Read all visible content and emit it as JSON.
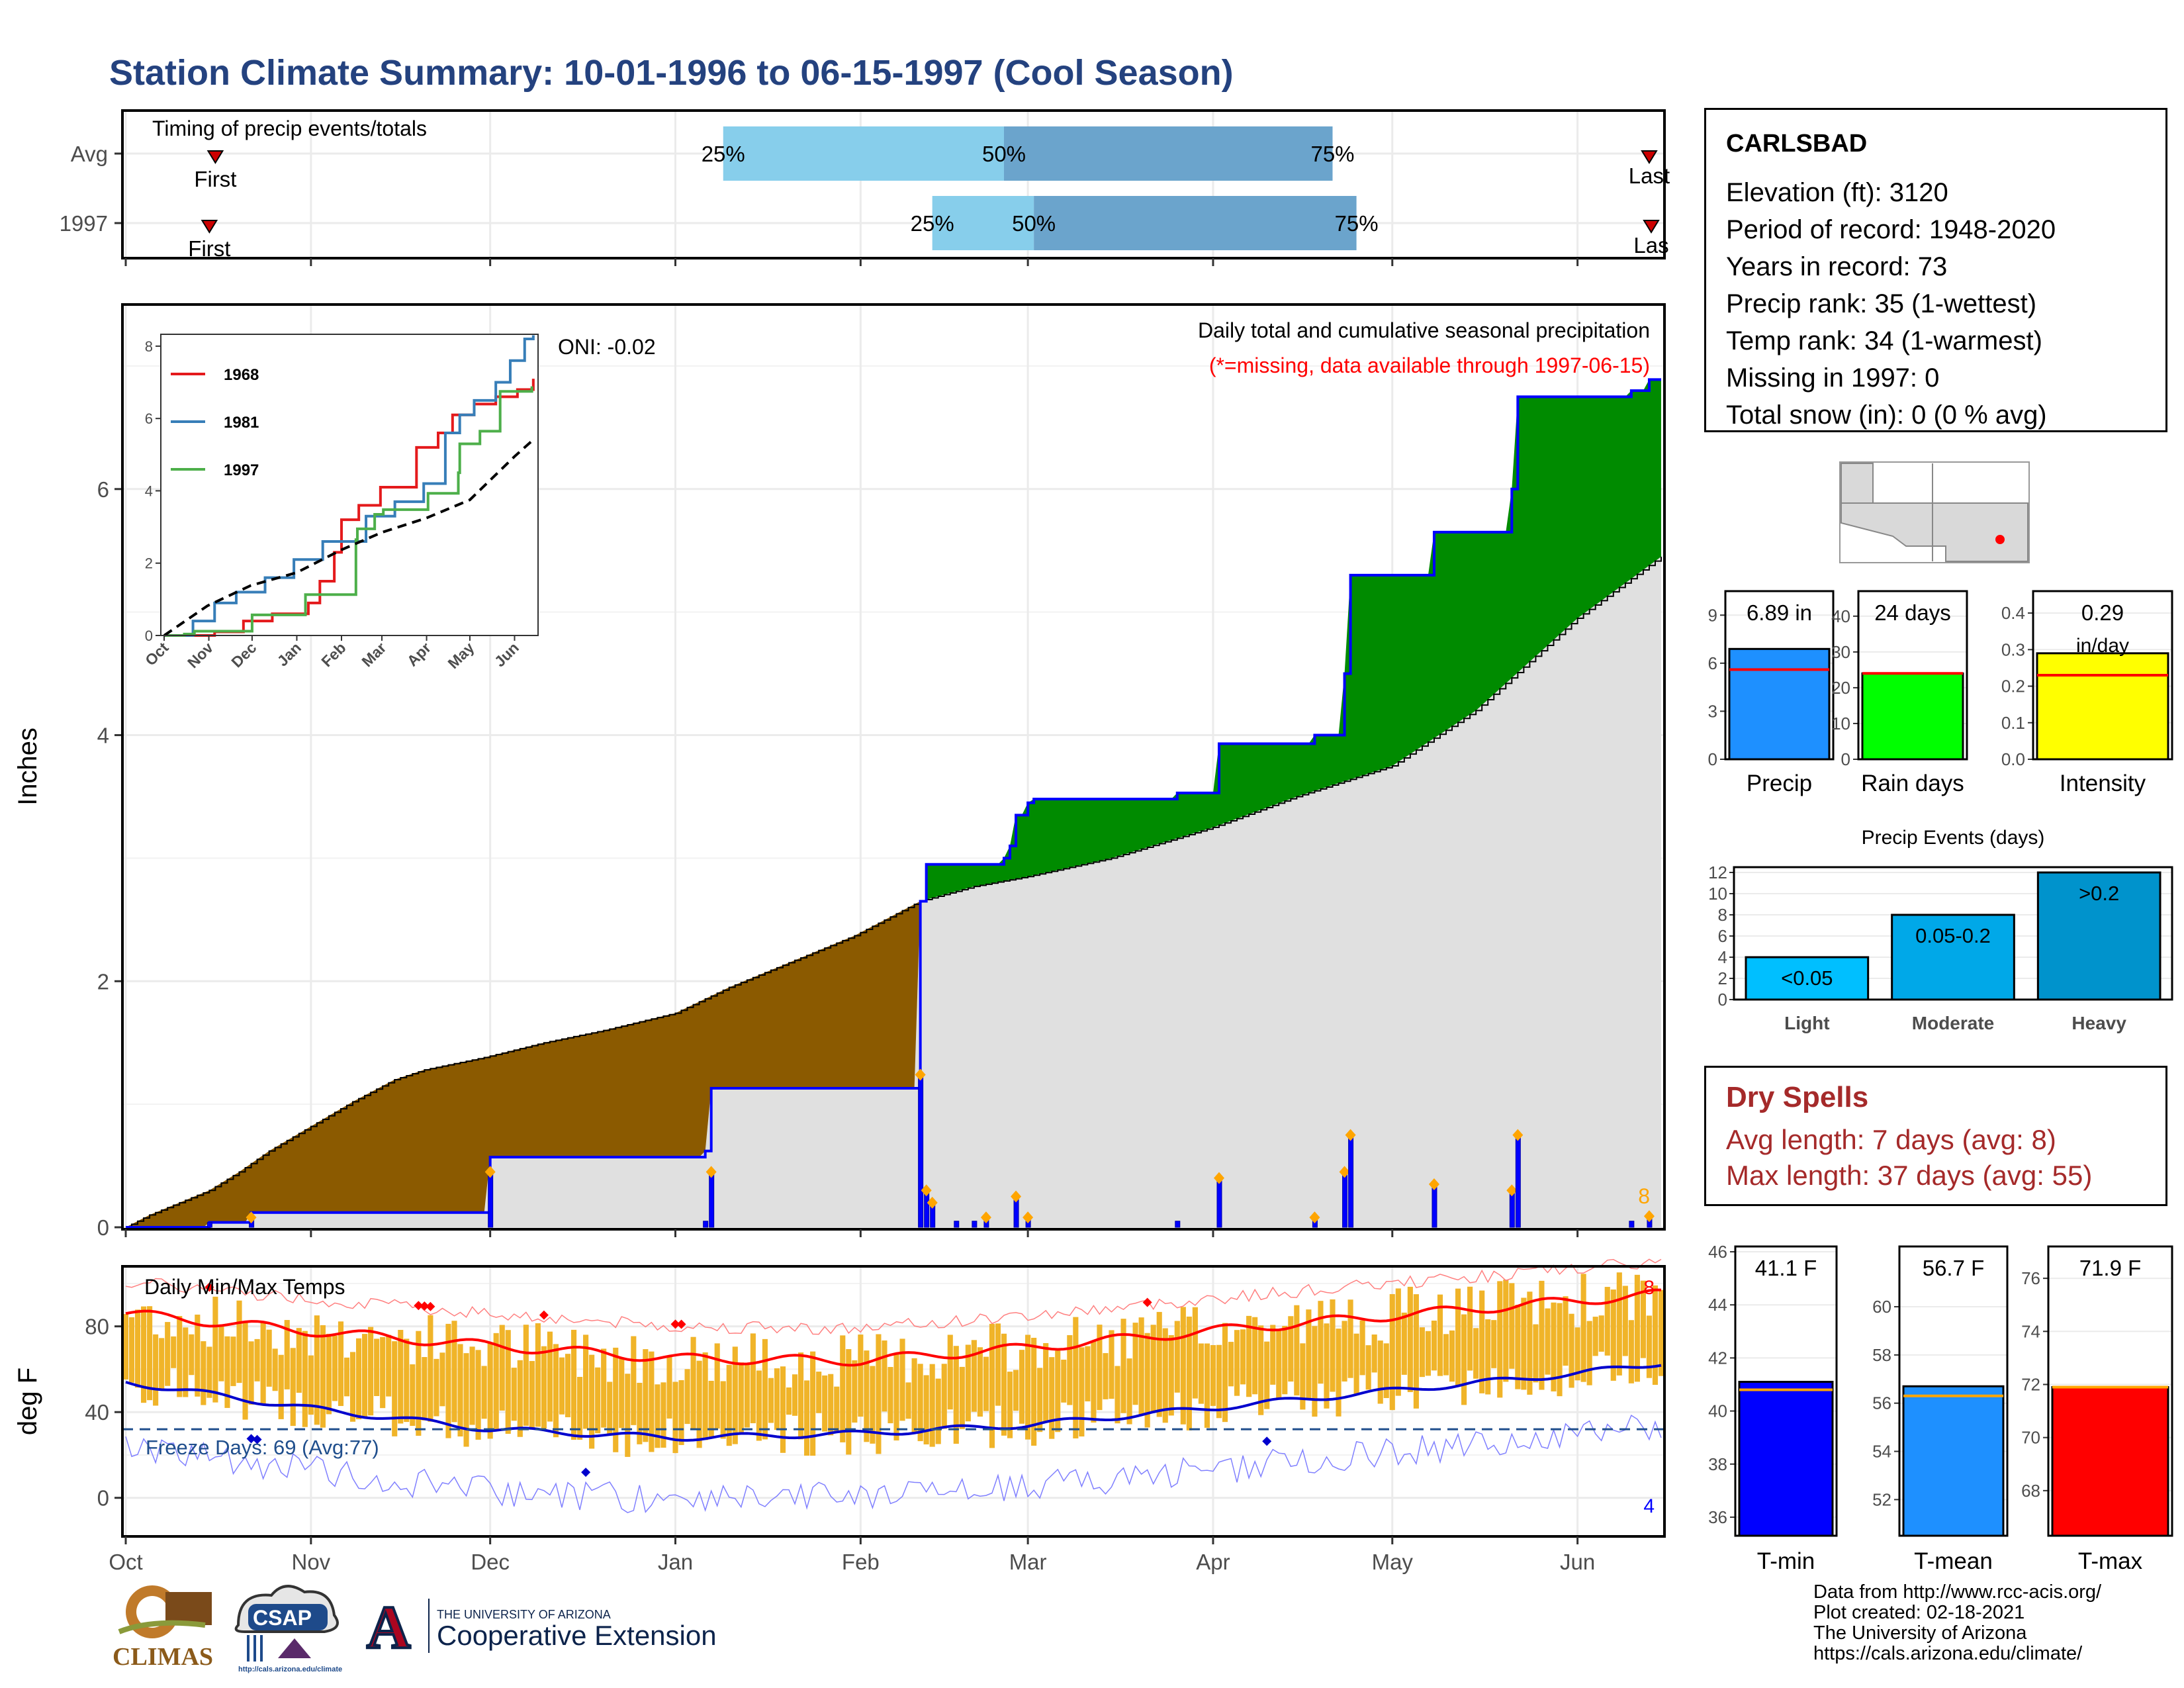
{
  "title": "Station Climate Summary: 10-01-1996 to 06-15-1997 (Cool Season)",
  "station": {
    "name": "CARLSBAD",
    "rows": [
      "Elevation (ft): 3120",
      "Period of record: 1948-2020",
      "Years in record: 73",
      "Precip rank: 35 (1-wettest)",
      "Temp rank: 34 (1-warmest)",
      "Missing in 1997: 0",
      "Total snow (in): 0 (0 % avg)"
    ]
  },
  "dry_spells": {
    "heading": "Dry Spells",
    "avg": "Avg length: 7 days (avg: 8)",
    "max": "Max length: 37 days (avg: 55)"
  },
  "credits": [
    "Data from http://www.rcc-acis.org/",
    "Plot created: 02-18-2021",
    "The University of Arizona",
    "https://cals.arizona.edu/climate/"
  ],
  "logos": {
    "climas": "CLIMAS",
    "csap": "CSAP",
    "csap_url": "http://cals.arizona.edu/climate",
    "ua_letter": "A",
    "ua_line1": "THE UNIVERSITY OF ARIZONA",
    "ua_line2": "Cooperative Extension"
  },
  "colors": {
    "title": "#24427f",
    "brown_fill": "#8b5a00",
    "green_fill": "#008b00",
    "grey_fill": "#e0e0e0",
    "precip_line": "#0000ff",
    "temp_bar": "#f0b429",
    "tmax_mean": "#ff0000",
    "tmin_mean": "#0000cd",
    "timing_light": "#87ceeb",
    "timing_dark": "#6ba4cc",
    "freeze_line": "#1f4e8c"
  },
  "chart_data": [
    {
      "type": "bar",
      "panel": "timing",
      "title": "Timing of precip events/totals",
      "categories": [
        "Avg",
        "1997"
      ],
      "months": [
        "Oct",
        "Nov",
        "Dec",
        "Jan",
        "Feb",
        "Mar",
        "Apr",
        "May",
        "Jun"
      ],
      "series": [
        {
          "name": "Avg",
          "first": "1996-10-16",
          "p25": "1997-01-09",
          "p50": "1997-02-25",
          "p75": "1997-04-21",
          "last": "1997-06-13",
          "labels": {
            "first": "First",
            "p25": "25%",
            "p50": "50%",
            "p75": "75%",
            "last": "Last"
          }
        },
        {
          "name": "1997",
          "first": "1996-10-15",
          "p25": "1997-02-13",
          "p50": "1997-03-02",
          "p75": "1997-04-25",
          "last": "1997-06-15",
          "labels": {
            "first": "First",
            "p25": "25%",
            "p50": "50%",
            "p75": "75%",
            "last": "Las"
          }
        }
      ]
    },
    {
      "type": "area",
      "panel": "precip",
      "title": "Daily total and cumulative seasonal precipitation",
      "subtitle": "(*=missing, data available through 1997-06-15)",
      "ylabel": "Inches",
      "ylim": [
        0,
        7.5
      ],
      "yticks": [
        0,
        2,
        4,
        6
      ],
      "xlim": [
        "1996-10-01",
        "1997-06-15"
      ],
      "oni": "ONI: -0.02",
      "count_label": "8",
      "cumulative_1997": [
        [
          "1996-10-01",
          0.0
        ],
        [
          "1996-10-15",
          0.04
        ],
        [
          "1996-10-22",
          0.12
        ],
        [
          "1996-11-30",
          0.12
        ],
        [
          "1996-12-01",
          0.57
        ],
        [
          "1997-01-05",
          0.57
        ],
        [
          "1997-01-06",
          0.62
        ],
        [
          "1997-01-07",
          1.13
        ],
        [
          "1997-02-10",
          1.13
        ],
        [
          "1997-02-11",
          2.65
        ],
        [
          "1997-02-12",
          2.95
        ],
        [
          "1997-02-24",
          2.95
        ],
        [
          "1997-02-25",
          3.0
        ],
        [
          "1997-02-26",
          3.1
        ],
        [
          "1997-02-27",
          3.35
        ],
        [
          "1997-03-01",
          3.45
        ],
        [
          "1997-03-02",
          3.48
        ],
        [
          "1997-03-25",
          3.48
        ],
        [
          "1997-03-26",
          3.53
        ],
        [
          "1997-04-01",
          3.53
        ],
        [
          "1997-04-02",
          3.93
        ],
        [
          "1997-04-17",
          3.93
        ],
        [
          "1997-04-18",
          4.0
        ],
        [
          "1997-04-22",
          4.0
        ],
        [
          "1997-04-23",
          4.5
        ],
        [
          "1997-04-24",
          5.3
        ],
        [
          "1997-05-07",
          5.3
        ],
        [
          "1997-05-08",
          5.65
        ],
        [
          "1997-05-20",
          5.65
        ],
        [
          "1997-05-21",
          6.0
        ],
        [
          "1997-05-22",
          6.75
        ],
        [
          "1997-06-07",
          6.75
        ],
        [
          "1997-06-10",
          6.8
        ],
        [
          "1997-06-13",
          6.89
        ],
        [
          "1997-06-15",
          6.89
        ]
      ],
      "cumulative_avg": [
        [
          "1996-10-01",
          0.0
        ],
        [
          "1996-10-05",
          0.1
        ],
        [
          "1996-10-10",
          0.2
        ],
        [
          "1996-10-15",
          0.3
        ],
        [
          "1996-10-20",
          0.45
        ],
        [
          "1996-10-25",
          0.62
        ],
        [
          "1996-11-01",
          0.82
        ],
        [
          "1996-11-08",
          1.02
        ],
        [
          "1996-11-15",
          1.2
        ],
        [
          "1996-11-20",
          1.28
        ],
        [
          "1996-11-30",
          1.38
        ],
        [
          "1996-12-10",
          1.5
        ],
        [
          "1996-12-20",
          1.6
        ],
        [
          "1997-01-01",
          1.74
        ],
        [
          "1997-01-10",
          1.95
        ],
        [
          "1997-01-20",
          2.15
        ],
        [
          "1997-01-31",
          2.37
        ],
        [
          "1997-02-11",
          2.65
        ],
        [
          "1997-02-20",
          2.77
        ],
        [
          "1997-03-01",
          2.85
        ],
        [
          "1997-03-15",
          3.0
        ],
        [
          "1997-04-01",
          3.25
        ],
        [
          "1997-04-15",
          3.5
        ],
        [
          "1997-05-01",
          3.75
        ],
        [
          "1997-05-15",
          4.2
        ],
        [
          "1997-06-01",
          4.95
        ],
        [
          "1997-06-15",
          5.45
        ]
      ],
      "daily": [
        [
          "1996-10-15",
          0.04
        ],
        [
          "1996-10-22",
          0.08
        ],
        [
          "1996-12-01",
          0.45
        ],
        [
          "1997-01-06",
          0.05
        ],
        [
          "1997-01-07",
          0.45
        ],
        [
          "1997-02-11",
          1.24
        ],
        [
          "1997-02-12",
          0.3
        ],
        [
          "1997-02-13",
          0.2
        ],
        [
          "1997-02-17",
          0.05
        ],
        [
          "1997-02-20",
          0.05
        ],
        [
          "1997-02-22",
          0.08
        ],
        [
          "1997-02-27",
          0.25
        ],
        [
          "1997-03-01",
          0.08
        ],
        [
          "1997-03-26",
          0.05
        ],
        [
          "1997-04-02",
          0.4
        ],
        [
          "1997-04-18",
          0.08
        ],
        [
          "1997-04-23",
          0.45
        ],
        [
          "1997-04-24",
          0.75
        ],
        [
          "1997-05-08",
          0.35
        ],
        [
          "1997-05-21",
          0.3
        ],
        [
          "1997-05-22",
          0.75
        ],
        [
          "1997-06-10",
          0.05
        ],
        [
          "1997-06-13",
          0.09
        ]
      ]
    },
    {
      "type": "line",
      "panel": "inset",
      "ylim": [
        0,
        8.2
      ],
      "yticks": [
        0,
        2,
        4,
        6,
        8
      ],
      "months": [
        "Oct",
        "Nov",
        "Dec",
        "Jan",
        "Feb",
        "Mar",
        "Apr",
        "May",
        "Jun"
      ],
      "series": [
        {
          "name": "1968",
          "color": "#e41a1c",
          "values": [
            [
              0,
              0
            ],
            [
              35,
              0.1
            ],
            [
              55,
              0.4
            ],
            [
              75,
              0.6
            ],
            [
              100,
              0.9
            ],
            [
              108,
              1.5
            ],
            [
              118,
              2.3
            ],
            [
              123,
              3.2
            ],
            [
              135,
              3.6
            ],
            [
              150,
              4.1
            ],
            [
              175,
              5.2
            ],
            [
              190,
              5.6
            ],
            [
              200,
              6.1
            ],
            [
              215,
              6.4
            ],
            [
              230,
              6.6
            ],
            [
              245,
              6.8
            ],
            [
              256,
              7.1
            ]
          ]
        },
        {
          "name": "1981",
          "color": "#377eb8",
          "values": [
            [
              0,
              0
            ],
            [
              20,
              0.4
            ],
            [
              35,
              0.9
            ],
            [
              50,
              1.2
            ],
            [
              70,
              1.6
            ],
            [
              90,
              2.1
            ],
            [
              110,
              2.6
            ],
            [
              140,
              3.3
            ],
            [
              160,
              3.7
            ],
            [
              180,
              4.2
            ],
            [
              195,
              5.6
            ],
            [
              205,
              6.1
            ],
            [
              215,
              6.5
            ],
            [
              230,
              7.0
            ],
            [
              240,
              7.6
            ],
            [
              250,
              8.2
            ],
            [
              256,
              8.3
            ]
          ]
        },
        {
          "name": "1997",
          "color": "#4daf4a",
          "values": [
            [
              0,
              0
            ],
            [
              14,
              0.04
            ],
            [
              21,
              0.12
            ],
            [
              61,
              0.57
            ],
            [
              98,
              1.13
            ],
            [
              133,
              2.65
            ],
            [
              134,
              2.95
            ],
            [
              146,
              3.35
            ],
            [
              152,
              3.48
            ],
            [
              183,
              3.93
            ],
            [
              204,
              4.5
            ],
            [
              205,
              5.3
            ],
            [
              219,
              5.65
            ],
            [
              233,
              6.75
            ],
            [
              255,
              6.89
            ]
          ]
        },
        {
          "name": "",
          "color": "#000000",
          "dashed": true,
          "values": [
            [
              0,
              0
            ],
            [
              30,
              0.82
            ],
            [
              60,
              1.38
            ],
            [
              92,
              1.74
            ],
            [
              123,
              2.37
            ],
            [
              151,
              2.85
            ],
            [
              182,
              3.25
            ],
            [
              212,
              3.75
            ],
            [
              243,
              4.95
            ],
            [
              257,
              5.45
            ]
          ]
        }
      ]
    },
    {
      "type": "bar",
      "panel": "temps",
      "title": "Daily Min/Max Temps",
      "ylabel": "deg F",
      "ylim": [
        -18,
        108
      ],
      "yticks": [
        0,
        40,
        80
      ],
      "freeze_threshold": 32,
      "freeze_label": "Freeze Days: 69 (Avg:77)",
      "max_count_label": "8",
      "min_count_label": "4",
      "record_highs": [
        "1996-10-15",
        "1996-11-19",
        "1996-11-20",
        "1996-11-21",
        "1996-12-10",
        "1997-01-01",
        "1997-01-02",
        "1997-03-21"
      ],
      "record_lows": [
        "1996-10-22",
        "1996-10-23",
        "1996-12-17",
        "1997-04-10"
      ],
      "avg_tmax_knots": [
        [
          0,
          86
        ],
        [
          30,
          78
        ],
        [
          61,
          71
        ],
        [
          92,
          65
        ],
        [
          123,
          64
        ],
        [
          151,
          70
        ],
        [
          182,
          78
        ],
        [
          212,
          85
        ],
        [
          243,
          92
        ],
        [
          257,
          95
        ]
      ],
      "avg_tmin_knots": [
        [
          0,
          54
        ],
        [
          30,
          42
        ],
        [
          61,
          32
        ],
        [
          92,
          28
        ],
        [
          123,
          30
        ],
        [
          151,
          34
        ],
        [
          182,
          42
        ],
        [
          212,
          50
        ],
        [
          243,
          58
        ],
        [
          257,
          63
        ]
      ]
    },
    {
      "type": "bar",
      "panel": "precip-summary",
      "categories": [
        "Precip"
      ],
      "values": [
        6.89
      ],
      "avg": 5.6,
      "ylim": [
        0,
        10.5
      ],
      "yticks": [
        0,
        3,
        6,
        9
      ],
      "label": "6.89 in",
      "color": "#1e90ff"
    },
    {
      "type": "bar",
      "panel": "raindays-summary",
      "categories": [
        "Rain days"
      ],
      "values": [
        24
      ],
      "avg": 24,
      "ylim": [
        0,
        47
      ],
      "yticks": [
        0,
        10,
        20,
        30,
        40
      ],
      "label": "24 days",
      "color": "#00ff00"
    },
    {
      "type": "bar",
      "panel": "intensity-summary",
      "categories": [
        "Intensity"
      ],
      "values": [
        0.29
      ],
      "avg": 0.23,
      "ylim": [
        0,
        0.46
      ],
      "yticks": [
        "0.0",
        "0.1",
        "0.2",
        "0.3",
        "0.4"
      ],
      "label": "0.29",
      "label2": "in/day",
      "color": "#ffff00"
    },
    {
      "type": "bar",
      "panel": "events",
      "title": "Precip Events (days)",
      "categories": [
        "Light",
        "Moderate",
        "Heavy"
      ],
      "values": [
        4,
        8,
        12
      ],
      "bar_labels": [
        "<0.05",
        "0.05-0.2",
        ">0.2"
      ],
      "ylim": [
        0,
        12.5
      ],
      "yticks": [
        0,
        2,
        4,
        6,
        8,
        10,
        12
      ],
      "colors": [
        "#00bfff",
        "#00a8e8",
        "#0093cc"
      ]
    },
    {
      "type": "bar",
      "panel": "tmin-summary",
      "categories": [
        "T-min"
      ],
      "values": [
        41.1
      ],
      "avg": 40.8,
      "ylim": [
        35.3,
        46.2
      ],
      "yticks": [
        36,
        38,
        40,
        42,
        44,
        46
      ],
      "label": "41.1 F",
      "color": "#0000ff"
    },
    {
      "type": "bar",
      "panel": "tmean-summary",
      "categories": [
        "T-mean"
      ],
      "values": [
        56.7
      ],
      "avg": 56.3,
      "ylim": [
        50.5,
        62.5
      ],
      "yticks": [
        52,
        54,
        56,
        58,
        60
      ],
      "label": "56.7 F",
      "color": "#1e90ff"
    },
    {
      "type": "bar",
      "panel": "tmax-summary",
      "categories": [
        "T-max"
      ],
      "values": [
        71.9
      ],
      "avg": 71.9,
      "ylim": [
        66.3,
        77.2
      ],
      "yticks": [
        68,
        70,
        72,
        74,
        76
      ],
      "label": "71.9 F",
      "color": "#ff0000"
    }
  ]
}
